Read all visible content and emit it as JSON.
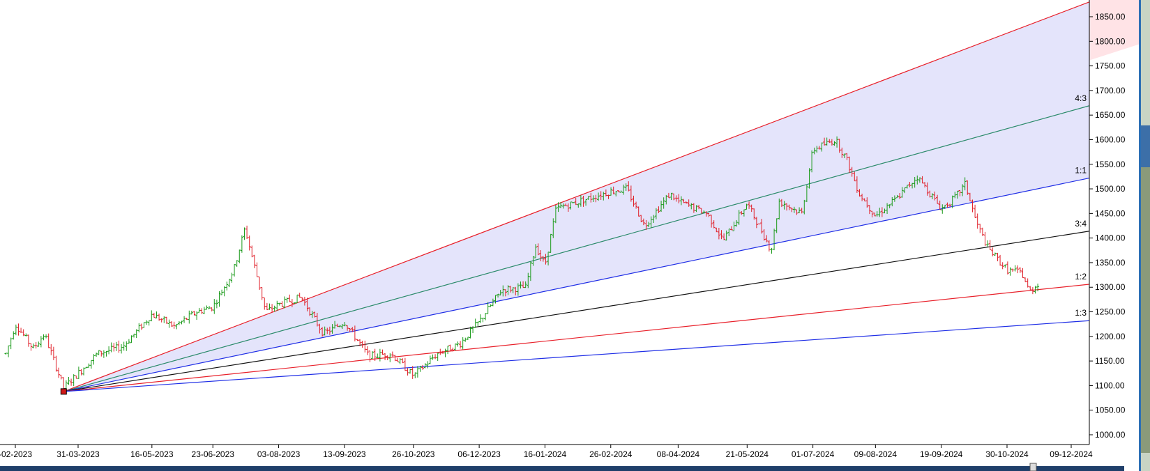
{
  "chart_data": {
    "type": "ohlc",
    "price_axis_labels": [
      "1850.00",
      "1800.00",
      "1750.00",
      "1700.00",
      "1650.00",
      "1600.00",
      "1550.00",
      "1500.00",
      "1450.00",
      "1400.00",
      "1350.00",
      "1300.00",
      "1250.00",
      "1200.00",
      "1150.00",
      "1100.00",
      "1050.00",
      "1000.00"
    ],
    "date_axis_labels": [
      "-02-2023",
      "31-03-2023",
      "16-05-2023",
      "23-06-2023",
      "03-08-2023",
      "13-09-2023",
      "26-10-2023",
      "06-12-2023",
      "16-01-2024",
      "26-02-2024",
      "08-04-2024",
      "21-05-2024",
      "01-07-2024",
      "09-08-2024",
      "19-09-2024",
      "30-10-2024",
      "09-12-2024"
    ],
    "ylim": [
      990,
      1880
    ],
    "gann_fan": {
      "origin": {
        "date": "22-03-2023",
        "price": 1088
      },
      "lines": [
        {
          "name": "2:1",
          "label": "",
          "color": "#e8202a",
          "end_price": 1880
        },
        {
          "name": "4:3",
          "label": "4:3",
          "color": "#2a8a6a",
          "end_price": 1669
        },
        {
          "name": "1:1",
          "label": "1:1",
          "color": "#1f2ee6",
          "end_price": 1522
        },
        {
          "name": "3:4",
          "label": "3:4",
          "color": "#111111",
          "end_price": 1414
        },
        {
          "name": "1:2",
          "label": "1:2",
          "color": "#e8202a",
          "end_price": 1306
        },
        {
          "name": "1:3",
          "label": "1:3",
          "color": "#1f2ee6",
          "end_price": 1232
        }
      ],
      "fill_upper": "#ffe3e6",
      "fill_middle": "#e4e4fb"
    },
    "price_path": [
      {
        "date": "14-02-2023",
        "price": 1165
      },
      {
        "date": "20-02-2023",
        "price": 1225
      },
      {
        "date": "03-03-2023",
        "price": 1175
      },
      {
        "date": "10-03-2023",
        "price": 1205
      },
      {
        "date": "22-03-2023",
        "price": 1095
      },
      {
        "date": "31-03-2023",
        "price": 1125
      },
      {
        "date": "12-04-2023",
        "price": 1165
      },
      {
        "date": "28-04-2023",
        "price": 1180
      },
      {
        "date": "16-05-2023",
        "price": 1245
      },
      {
        "date": "30-05-2023",
        "price": 1220
      },
      {
        "date": "13-06-2023",
        "price": 1250
      },
      {
        "date": "23-06-2023",
        "price": 1260
      },
      {
        "date": "06-07-2023",
        "price": 1335
      },
      {
        "date": "13-07-2023",
        "price": 1420
      },
      {
        "date": "26-07-2023",
        "price": 1250
      },
      {
        "date": "03-08-2023",
        "price": 1265
      },
      {
        "date": "17-08-2023",
        "price": 1280
      },
      {
        "date": "31-08-2023",
        "price": 1205
      },
      {
        "date": "13-09-2023",
        "price": 1230
      },
      {
        "date": "28-09-2023",
        "price": 1160
      },
      {
        "date": "12-10-2023",
        "price": 1165
      },
      {
        "date": "26-10-2023",
        "price": 1120
      },
      {
        "date": "10-11-2023",
        "price": 1165
      },
      {
        "date": "24-11-2023",
        "price": 1185
      },
      {
        "date": "06-12-2023",
        "price": 1230
      },
      {
        "date": "20-12-2023",
        "price": 1295
      },
      {
        "date": "04-01-2024",
        "price": 1300
      },
      {
        "date": "10-01-2024",
        "price": 1385
      },
      {
        "date": "16-01-2024",
        "price": 1345
      },
      {
        "date": "23-01-2024",
        "price": 1460
      },
      {
        "date": "07-02-2024",
        "price": 1475
      },
      {
        "date": "26-02-2024",
        "price": 1495
      },
      {
        "date": "07-03-2024",
        "price": 1500
      },
      {
        "date": "18-03-2024",
        "price": 1425
      },
      {
        "date": "03-04-2024",
        "price": 1490
      },
      {
        "date": "08-04-2024",
        "price": 1475
      },
      {
        "date": "26-04-2024",
        "price": 1450
      },
      {
        "date": "06-05-2024",
        "price": 1395
      },
      {
        "date": "21-05-2024",
        "price": 1470
      },
      {
        "date": "30-05-2024",
        "price": 1415
      },
      {
        "date": "05-06-2024",
        "price": 1375
      },
      {
        "date": "10-06-2024",
        "price": 1475
      },
      {
        "date": "24-06-2024",
        "price": 1450
      },
      {
        "date": "01-07-2024",
        "price": 1580
      },
      {
        "date": "15-07-2024",
        "price": 1600
      },
      {
        "date": "22-07-2024",
        "price": 1560
      },
      {
        "date": "30-07-2024",
        "price": 1490
      },
      {
        "date": "09-08-2024",
        "price": 1445
      },
      {
        "date": "22-08-2024",
        "price": 1480
      },
      {
        "date": "04-09-2024",
        "price": 1525
      },
      {
        "date": "19-09-2024",
        "price": 1460
      },
      {
        "date": "27-09-2024",
        "price": 1480
      },
      {
        "date": "04-10-2024",
        "price": 1510
      },
      {
        "date": "11-10-2024",
        "price": 1430
      },
      {
        "date": "18-10-2024",
        "price": 1380
      },
      {
        "date": "30-10-2024",
        "price": 1335
      },
      {
        "date": "08-11-2024",
        "price": 1330
      },
      {
        "date": "13-11-2024",
        "price": 1290
      },
      {
        "date": "19-11-2024",
        "price": 1310
      }
    ]
  }
}
